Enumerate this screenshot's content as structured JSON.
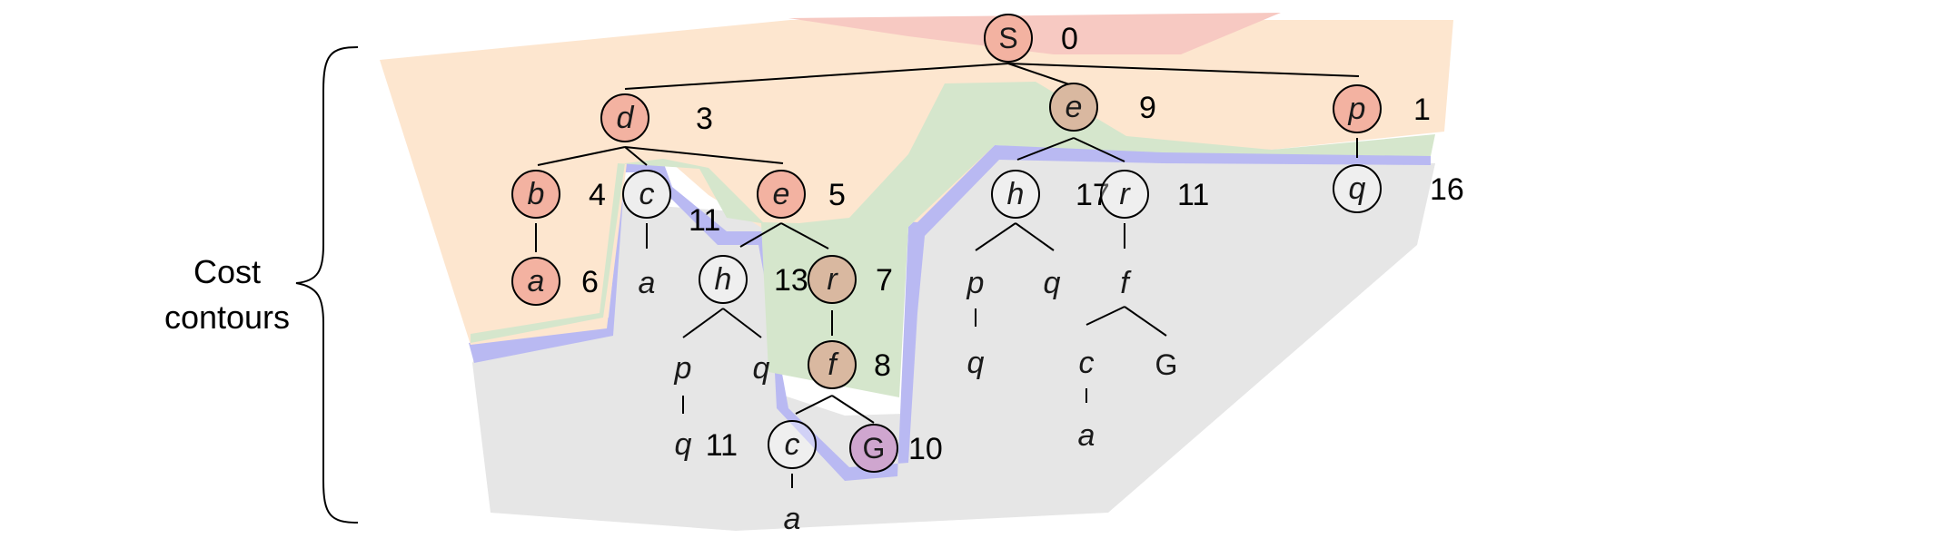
{
  "caption_lines": [
    "Cost",
    "contours"
  ],
  "colors": {
    "contour_red": "#f7c9c2",
    "contour_orange": "#fde6cf",
    "contour_green": "#d5e6cc",
    "contour_blue": "#b9b9f2",
    "contour_gray": "#e6e6e6",
    "node_red": "#f3b2a1",
    "node_brown": "#d9b8a0",
    "node_goal": "#cfa6cf",
    "node_light": "#eeeeee",
    "outline": "#000000"
  },
  "nodes": [
    {
      "id": "S",
      "label": "S",
      "cost": "0",
      "circled": true,
      "fill": "node_red",
      "goal_style": true
    },
    {
      "id": "d",
      "label": "d",
      "cost": "3",
      "circled": true,
      "fill": "node_red"
    },
    {
      "id": "e1",
      "label": "e",
      "cost": "9",
      "circled": true,
      "fill": "node_brown"
    },
    {
      "id": "p1",
      "label": "p",
      "cost": "1",
      "circled": true,
      "fill": "node_red"
    },
    {
      "id": "b",
      "label": "b",
      "cost": "4",
      "circled": true,
      "fill": "node_red"
    },
    {
      "id": "c1",
      "label": "c",
      "cost": "11",
      "circled": true,
      "fill": "node_light"
    },
    {
      "id": "e2",
      "label": "e",
      "cost": "5",
      "circled": true,
      "fill": "node_red"
    },
    {
      "id": "h1",
      "label": "h",
      "cost": "17",
      "circled": true,
      "fill": "none"
    },
    {
      "id": "r1",
      "label": "r",
      "cost": "11",
      "circled": true,
      "fill": "none"
    },
    {
      "id": "q1",
      "label": "q",
      "cost": "16",
      "circled": true,
      "fill": "none"
    },
    {
      "id": "a1",
      "label": "a",
      "cost": "6",
      "circled": true,
      "fill": "node_red"
    },
    {
      "id": "a2",
      "label": "a",
      "cost": "",
      "circled": false
    },
    {
      "id": "h2",
      "label": "h",
      "cost": "13",
      "circled": true,
      "fill": "none"
    },
    {
      "id": "r2",
      "label": "r",
      "cost": "7",
      "circled": true,
      "fill": "node_brown"
    },
    {
      "id": "p2",
      "label": "p",
      "cost": "",
      "circled": false
    },
    {
      "id": "q2",
      "label": "q",
      "cost": "",
      "circled": false
    },
    {
      "id": "f1",
      "label": "f",
      "cost": "",
      "circled": false
    },
    {
      "id": "p3",
      "label": "p",
      "cost": "",
      "circled": false
    },
    {
      "id": "q3",
      "label": "q",
      "cost": "",
      "circled": false
    },
    {
      "id": "f2",
      "label": "f",
      "cost": "8",
      "circled": true,
      "fill": "node_brown"
    },
    {
      "id": "q4",
      "label": "q",
      "cost": "",
      "circled": false
    },
    {
      "id": "c2",
      "label": "c",
      "cost": "",
      "circled": false
    },
    {
      "id": "G1",
      "label": "G",
      "cost": "",
      "circled": false,
      "goal_style": true
    },
    {
      "id": "q5",
      "label": "q",
      "cost": "",
      "circled": false
    },
    {
      "id": "c3",
      "label": "c",
      "cost": "11",
      "circled": true,
      "fill": "none"
    },
    {
      "id": "G2",
      "label": "G",
      "cost": "10",
      "circled": true,
      "fill": "node_goal",
      "goal_style": true
    },
    {
      "id": "a3",
      "label": "a",
      "cost": "",
      "circled": false
    },
    {
      "id": "a4",
      "label": "a",
      "cost": "",
      "circled": false
    }
  ]
}
